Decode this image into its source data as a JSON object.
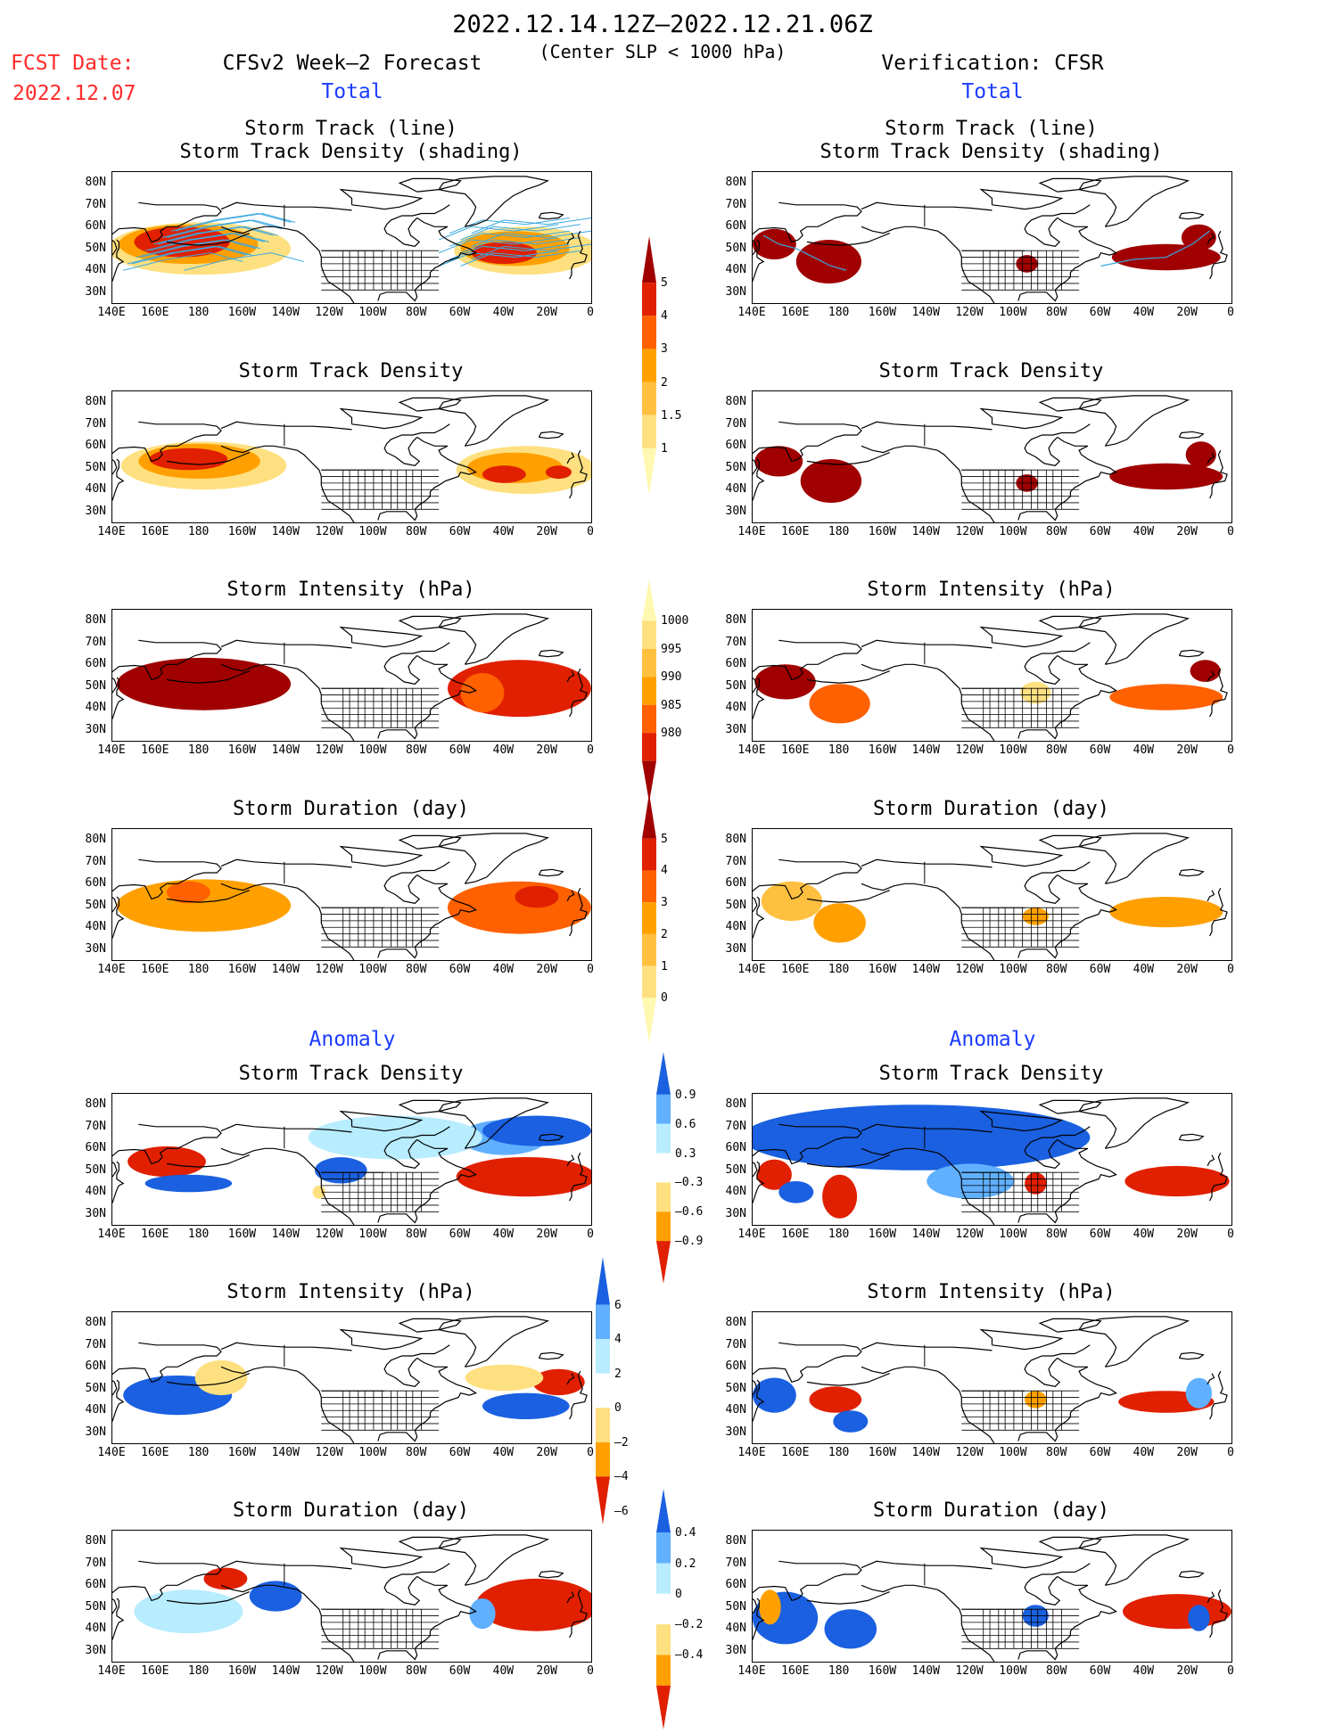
{
  "header": {
    "period": "2022.12.14.12Z–2022.12.21.06Z",
    "subtitle": "(Center SLP < 1000 hPa)",
    "fcst_label": "FCST Date:",
    "fcst_date": "2022.12.07",
    "left_title": "CFSv2 Week–2 Forecast",
    "right_title": "Verification: CFSR",
    "total": "Total",
    "anomaly": "Anomaly"
  },
  "panel_titles": {
    "track_line": "Storm Track (line)",
    "track_shading": "Storm Track Density (shading)",
    "density": "Storm Track Density",
    "intensity": "Storm Intensity (hPa)",
    "duration": "Storm Duration (day)"
  },
  "axes": {
    "lat_labels": [
      "80N",
      "70N",
      "60N",
      "50N",
      "40N",
      "30N"
    ],
    "lon_labels": [
      "140E",
      "160E",
      "180",
      "160W",
      "140W",
      "120W",
      "100W",
      "80W",
      "60W",
      "40W",
      "20W",
      "0"
    ]
  },
  "colorbars": {
    "density_total": [
      "5",
      "4",
      "3",
      "2",
      "1.5",
      "1"
    ],
    "intensity_total": [
      "1000",
      "995",
      "990",
      "985",
      "980"
    ],
    "duration_total": [
      "5",
      "4",
      "3",
      "2",
      "1",
      "0"
    ],
    "density_anom": [
      "0.9",
      "0.6",
      "0.3",
      "–0.3",
      "–0.6",
      "–0.9"
    ],
    "intensity_anom": [
      "6",
      "4",
      "2",
      "0",
      "–2",
      "–4",
      "–6"
    ],
    "duration_anom": [
      "0.4",
      "0.2",
      "0",
      "–0.2",
      "–0.4"
    ]
  },
  "colors": {
    "seq": [
      "#fff8b0",
      "#ffe080",
      "#ffc040",
      "#ffa000",
      "#ff6000",
      "#e02000",
      "#a00000"
    ],
    "div_pos": [
      "#ffe080",
      "#ffa000",
      "#e02000"
    ],
    "div_neg": [
      "#b8ecff",
      "#60b0ff",
      "#1a60e0"
    ]
  }
}
